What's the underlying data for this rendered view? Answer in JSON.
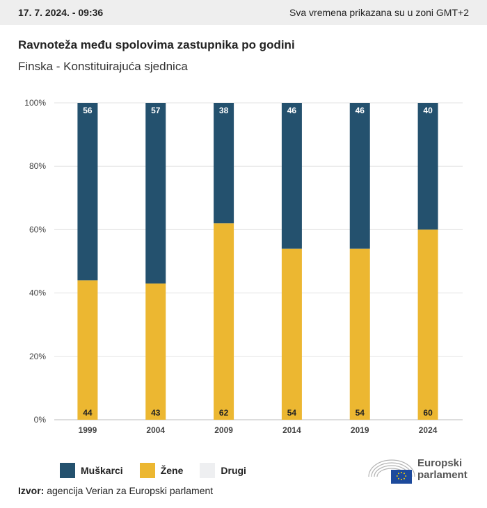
{
  "header": {
    "date": "17. 7. 2024. - 09:36",
    "timezone_note": "Sva vremena prikazana su u zoni GMT+2"
  },
  "title": "Ravnoteža među spolovima zastupnika po godini",
  "subtitle": "Finska - Konstituirajuća sjednica",
  "chart_data": {
    "type": "bar",
    "stacked": true,
    "categories": [
      "1999",
      "2004",
      "2009",
      "2014",
      "2019",
      "2024"
    ],
    "series": [
      {
        "name": "Žene",
        "values": [
          44,
          43,
          62,
          54,
          54,
          60
        ],
        "color": "#ecb731"
      },
      {
        "name": "Muškarci",
        "values": [
          56,
          57,
          38,
          46,
          46,
          40
        ],
        "color": "#24516e"
      }
    ],
    "ylim": [
      0,
      100
    ],
    "y_ticks": [
      "0%",
      "20%",
      "40%",
      "60%",
      "80%",
      "100%"
    ],
    "grid": true,
    "legend_position": "bottom-left"
  },
  "legend": [
    {
      "label": "Muškarci",
      "color": "#24516e"
    },
    {
      "label": "Žene",
      "color": "#ecb731"
    },
    {
      "label": "Drugi",
      "color": "#eeeff1"
    }
  ],
  "source": {
    "prefix": "Izvor:",
    "text": "agencija Verian za Europski parlament"
  },
  "logo": {
    "line1": "Europski",
    "line2": "parlament"
  }
}
